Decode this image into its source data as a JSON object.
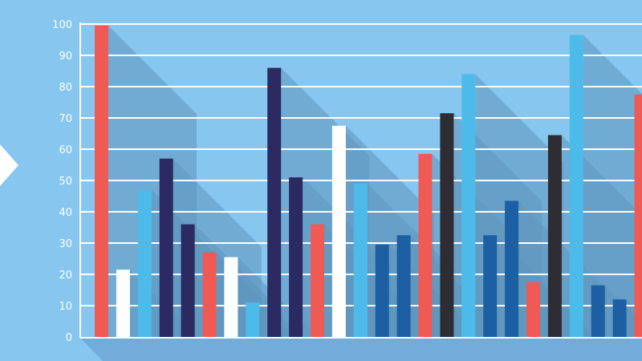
{
  "chart_data": {
    "type": "bar",
    "title": "",
    "xlabel": "",
    "ylabel": "",
    "ylim": [
      0,
      100
    ],
    "yticks": [
      0,
      10,
      20,
      30,
      40,
      50,
      60,
      70,
      80,
      90,
      100
    ],
    "grid": true,
    "legend": "none",
    "colors": {
      "background": "#86c6ef",
      "grid": "#ffffff",
      "shadow": "#5f95bd",
      "red": "#f05a55",
      "white": "#ffffff",
      "light_blue": "#4dbbea",
      "navy": "#2b2a63",
      "blue": "#1d5fa3",
      "black": "#2d2d33"
    },
    "bars": [
      {
        "value": 99.5,
        "color": "red"
      },
      {
        "value": 21.5,
        "color": "white"
      },
      {
        "value": 47,
        "color": "light_blue"
      },
      {
        "value": 57,
        "color": "navy"
      },
      {
        "value": 36,
        "color": "navy"
      },
      {
        "value": 27,
        "color": "red"
      },
      {
        "value": 25.5,
        "color": "white"
      },
      {
        "value": 11,
        "color": "light_blue"
      },
      {
        "value": 86,
        "color": "navy"
      },
      {
        "value": 51,
        "color": "navy"
      },
      {
        "value": 36,
        "color": "red"
      },
      {
        "value": 67.5,
        "color": "white"
      },
      {
        "value": 49,
        "color": "light_blue"
      },
      {
        "value": 29.5,
        "color": "blue"
      },
      {
        "value": 32.5,
        "color": "blue"
      },
      {
        "value": 58.5,
        "color": "red"
      },
      {
        "value": 71.5,
        "color": "black"
      },
      {
        "value": 84,
        "color": "light_blue"
      },
      {
        "value": 32.5,
        "color": "blue"
      },
      {
        "value": 43.5,
        "color": "blue"
      },
      {
        "value": 17.5,
        "color": "red"
      },
      {
        "value": 64.5,
        "color": "black"
      },
      {
        "value": 96.5,
        "color": "light_blue"
      },
      {
        "value": 16.5,
        "color": "blue"
      },
      {
        "value": 12,
        "color": "blue"
      },
      {
        "value": 77.5,
        "color": "red"
      }
    ]
  }
}
